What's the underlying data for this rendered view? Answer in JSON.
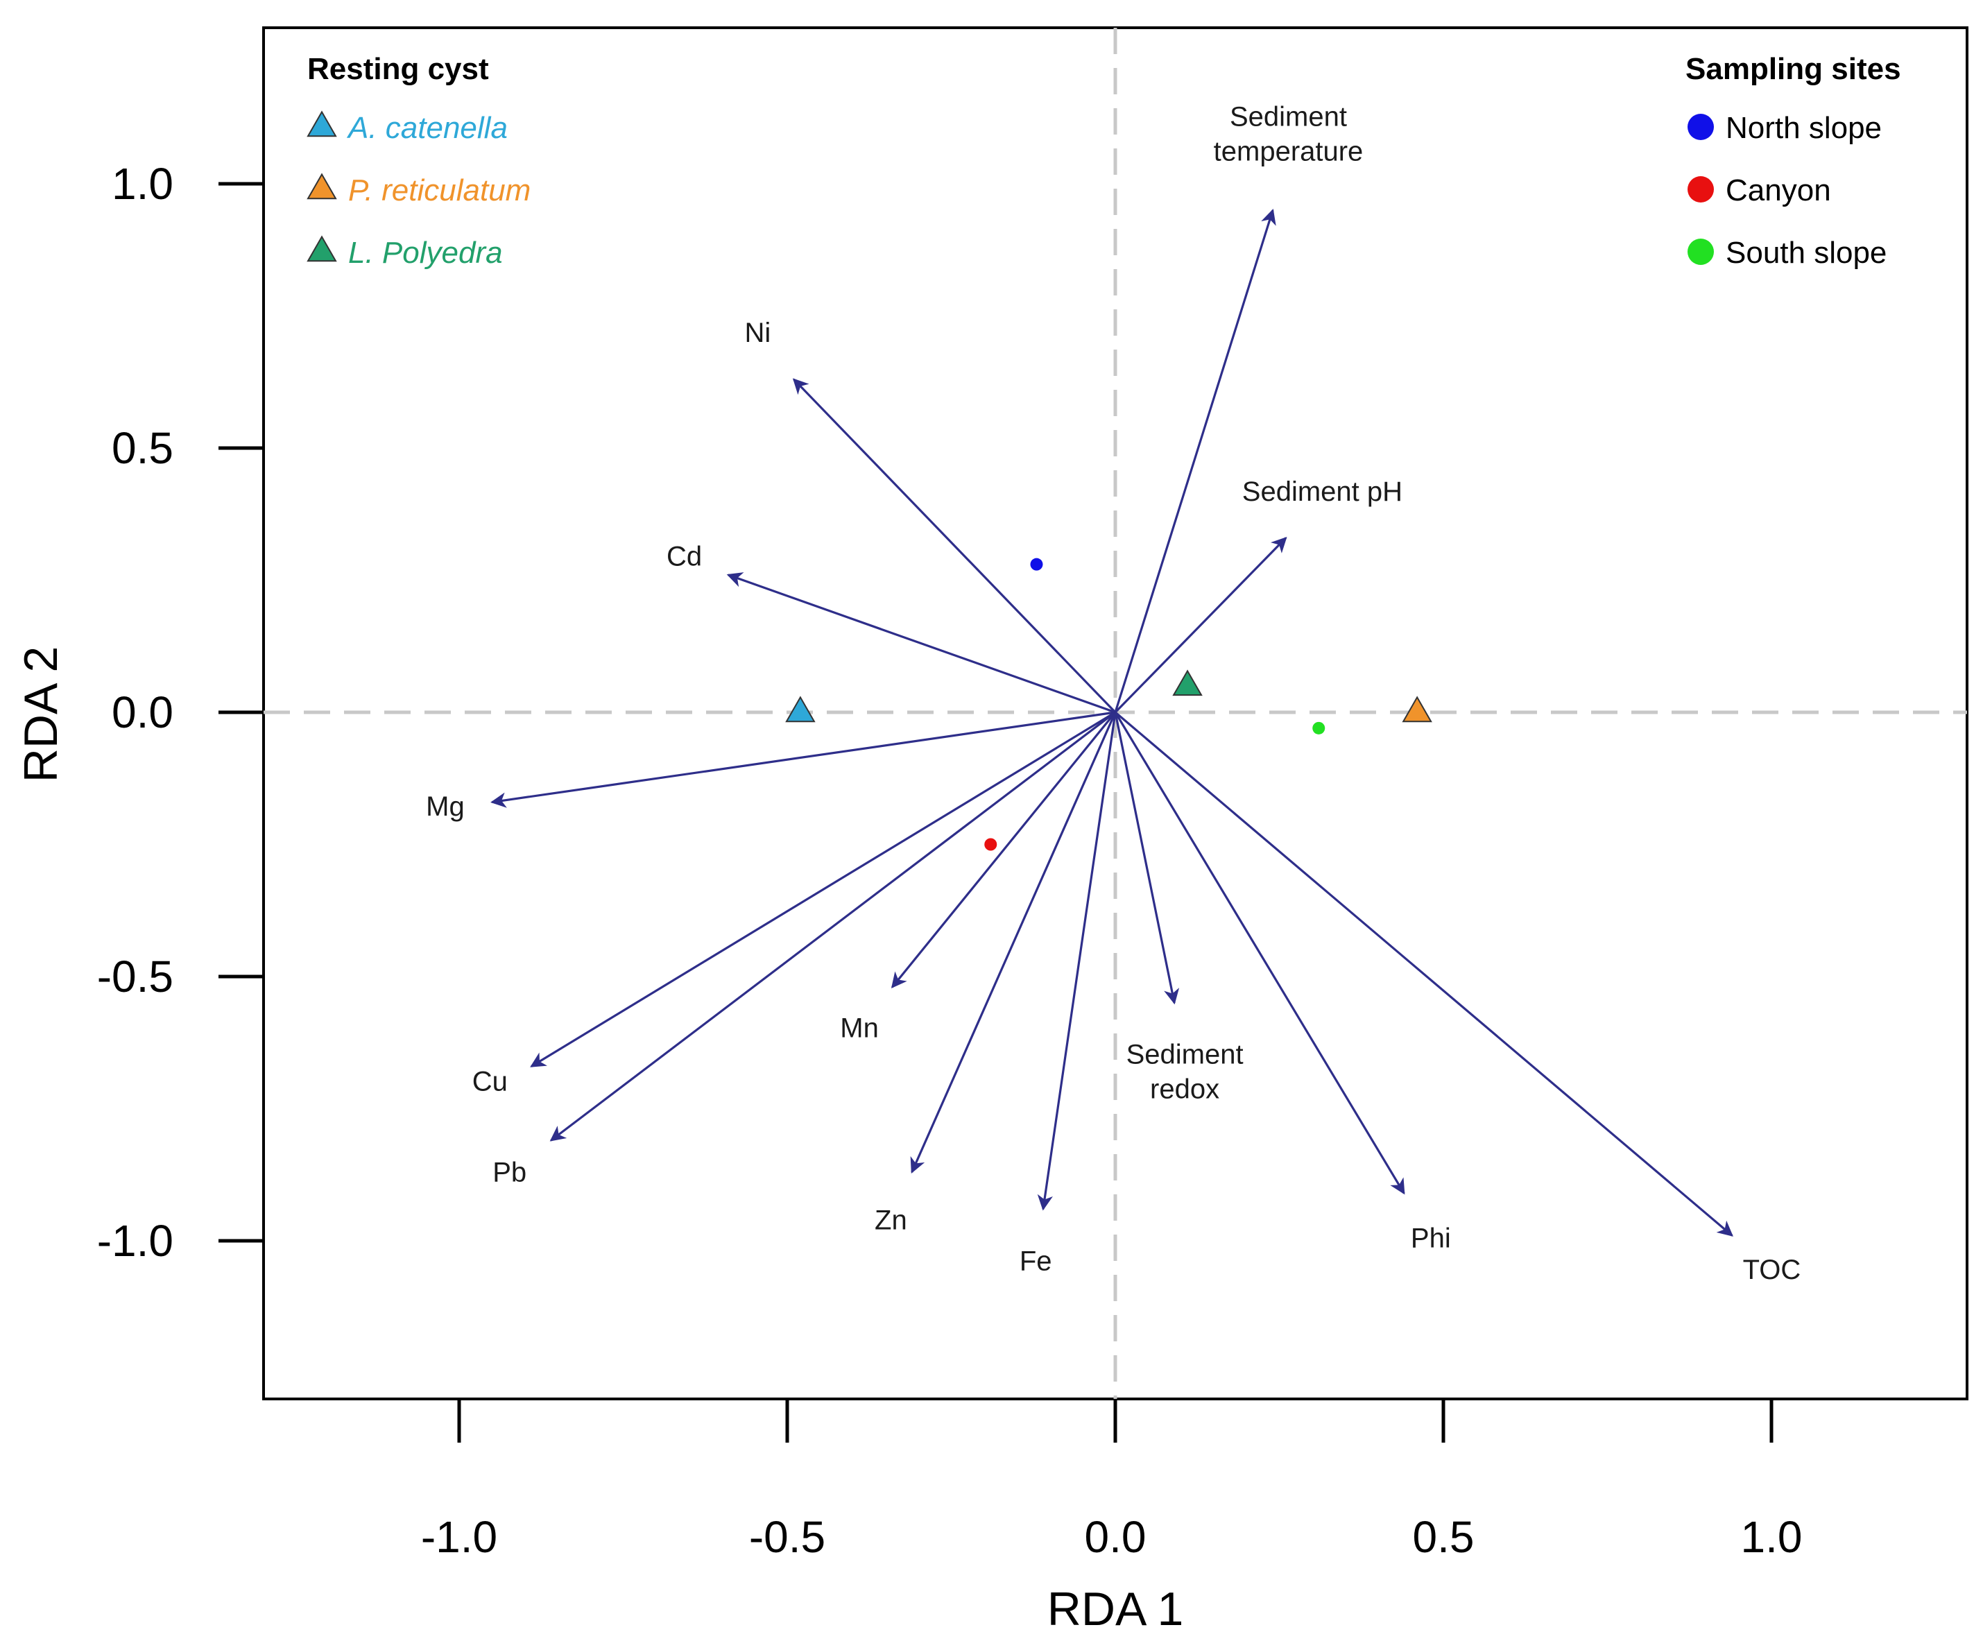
{
  "chart_data": {
    "type": "scatter",
    "subtype": "rda_biplot",
    "xlabel": "RDA 1",
    "ylabel": "RDA 2",
    "xlim": [
      -1.3,
      1.3
    ],
    "ylim": [
      -1.3,
      1.3
    ],
    "x_ticks": [
      -1.0,
      -0.5,
      0.0,
      0.5,
      1.0
    ],
    "x_tick_labels": [
      "-1.0",
      "-0.5",
      "0.0",
      "0.5",
      "1.0"
    ],
    "y_ticks": [
      -1.0,
      -0.5,
      0.0,
      0.5,
      1.0
    ],
    "y_tick_labels": [
      "-1.0",
      "-0.5",
      "0.0",
      "0.5",
      "1.0"
    ],
    "reference_lines": {
      "x": 0.0,
      "y": 0.0,
      "style": "dashed"
    },
    "vector_color": "#2e2e8a",
    "vectors": [
      {
        "name": "Sediment temperature",
        "label_lines": [
          "Sediment",
          "temperature"
        ],
        "x": 0.24,
        "y": 0.95
      },
      {
        "name": "Ni",
        "label_lines": [
          "Ni"
        ],
        "x": -0.49,
        "y": 0.63
      },
      {
        "name": "Sediment pH",
        "label_lines": [
          "Sediment pH"
        ],
        "x": 0.26,
        "y": 0.33
      },
      {
        "name": "Cd",
        "label_lines": [
          "Cd"
        ],
        "x": -0.59,
        "y": 0.26
      },
      {
        "name": "Mg",
        "label_lines": [
          "Mg"
        ],
        "x": -0.95,
        "y": -0.17
      },
      {
        "name": "Mn",
        "label_lines": [
          "Mn"
        ],
        "x": -0.34,
        "y": -0.52
      },
      {
        "name": "Cu",
        "label_lines": [
          "Cu"
        ],
        "x": -0.89,
        "y": -0.67
      },
      {
        "name": "Pb",
        "label_lines": [
          "Pb"
        ],
        "x": -0.86,
        "y": -0.81
      },
      {
        "name": "Zn",
        "label_lines": [
          "Zn"
        ],
        "x": -0.31,
        "y": -0.87
      },
      {
        "name": "Fe",
        "label_lines": [
          "Fe"
        ],
        "x": -0.11,
        "y": -0.94
      },
      {
        "name": "Sediment redox",
        "label_lines": [
          "Sediment",
          "redox"
        ],
        "x": 0.09,
        "y": -0.55
      },
      {
        "name": "Phi",
        "label_lines": [
          "Phi"
        ],
        "x": 0.44,
        "y": -0.91
      },
      {
        "name": "TOC",
        "label_lines": [
          "TOC"
        ],
        "x": 0.94,
        "y": -0.99
      }
    ],
    "species_points": [
      {
        "name": "A. catenella",
        "x": -0.48,
        "y": 0.0,
        "color": "#2ea8d8",
        "marker": "triangle"
      },
      {
        "name": "P. reticulatum",
        "x": 0.46,
        "y": 0.0,
        "color": "#f0932b",
        "marker": "triangle"
      },
      {
        "name": "L. Polyedra",
        "x": 0.11,
        "y": 0.05,
        "color": "#22a06b",
        "marker": "triangle"
      }
    ],
    "site_points": [
      {
        "name": "North slope",
        "x": -0.12,
        "y": 0.28,
        "color": "#1010e8",
        "marker": "circle"
      },
      {
        "name": "Canyon",
        "x": -0.19,
        "y": -0.25,
        "color": "#e81010",
        "marker": "circle"
      },
      {
        "name": "South slope",
        "x": 0.31,
        "y": -0.03,
        "color": "#22e022",
        "marker": "circle"
      }
    ],
    "legends": [
      {
        "title": "Resting cyst",
        "position": "top-left",
        "entries": [
          "A. catenella",
          "P. reticulatum",
          "L. Polyedra"
        ]
      },
      {
        "title": "Sampling sites",
        "position": "top-right",
        "entries": [
          "North slope",
          "Canyon",
          "South slope"
        ]
      }
    ]
  }
}
